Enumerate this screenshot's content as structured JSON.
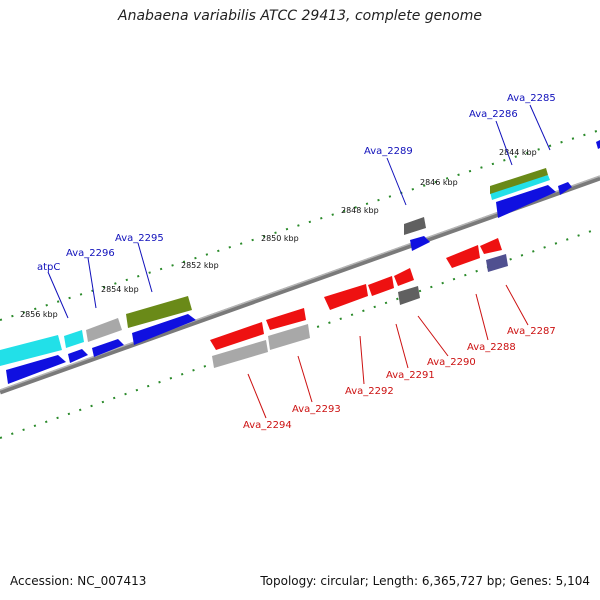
{
  "title": "Anabaena variabilis ATCC 29413, complete genome",
  "footer": {
    "accession": "Accession: NC_007413",
    "summary": "Topology: circular; Length: 6,365,727 bp; Genes: 5,104"
  },
  "colors": {
    "backbone": "#8a8a8a",
    "tick": "#2a8a2a",
    "forward_label": "#1111bb",
    "reverse_label": "#cc1111",
    "gene_blue": "#1010e0",
    "gene_cyan": "#22e0e8",
    "gene_olive": "#6a8a18",
    "gene_gray": "#a8a8a8",
    "gene_darkgray": "#606060",
    "gene_red": "#ee1111",
    "gene_slate": "#505090"
  },
  "tick_labels": [
    "2844 kbp",
    "2846 kbp",
    "2848 kbp",
    "2850 kbp",
    "2852 kbp",
    "2854 kbp",
    "2856 kbp"
  ],
  "forward_gene_labels": [
    "Ava_2285",
    "Ava_2286",
    "Ava_2289",
    "Ava_2295",
    "Ava_2296",
    "atpC"
  ],
  "reverse_gene_labels": [
    "Ava_2287",
    "Ava_2288",
    "Ava_2290",
    "Ava_2291",
    "Ava_2292",
    "Ava_2293",
    "Ava_2294"
  ]
}
